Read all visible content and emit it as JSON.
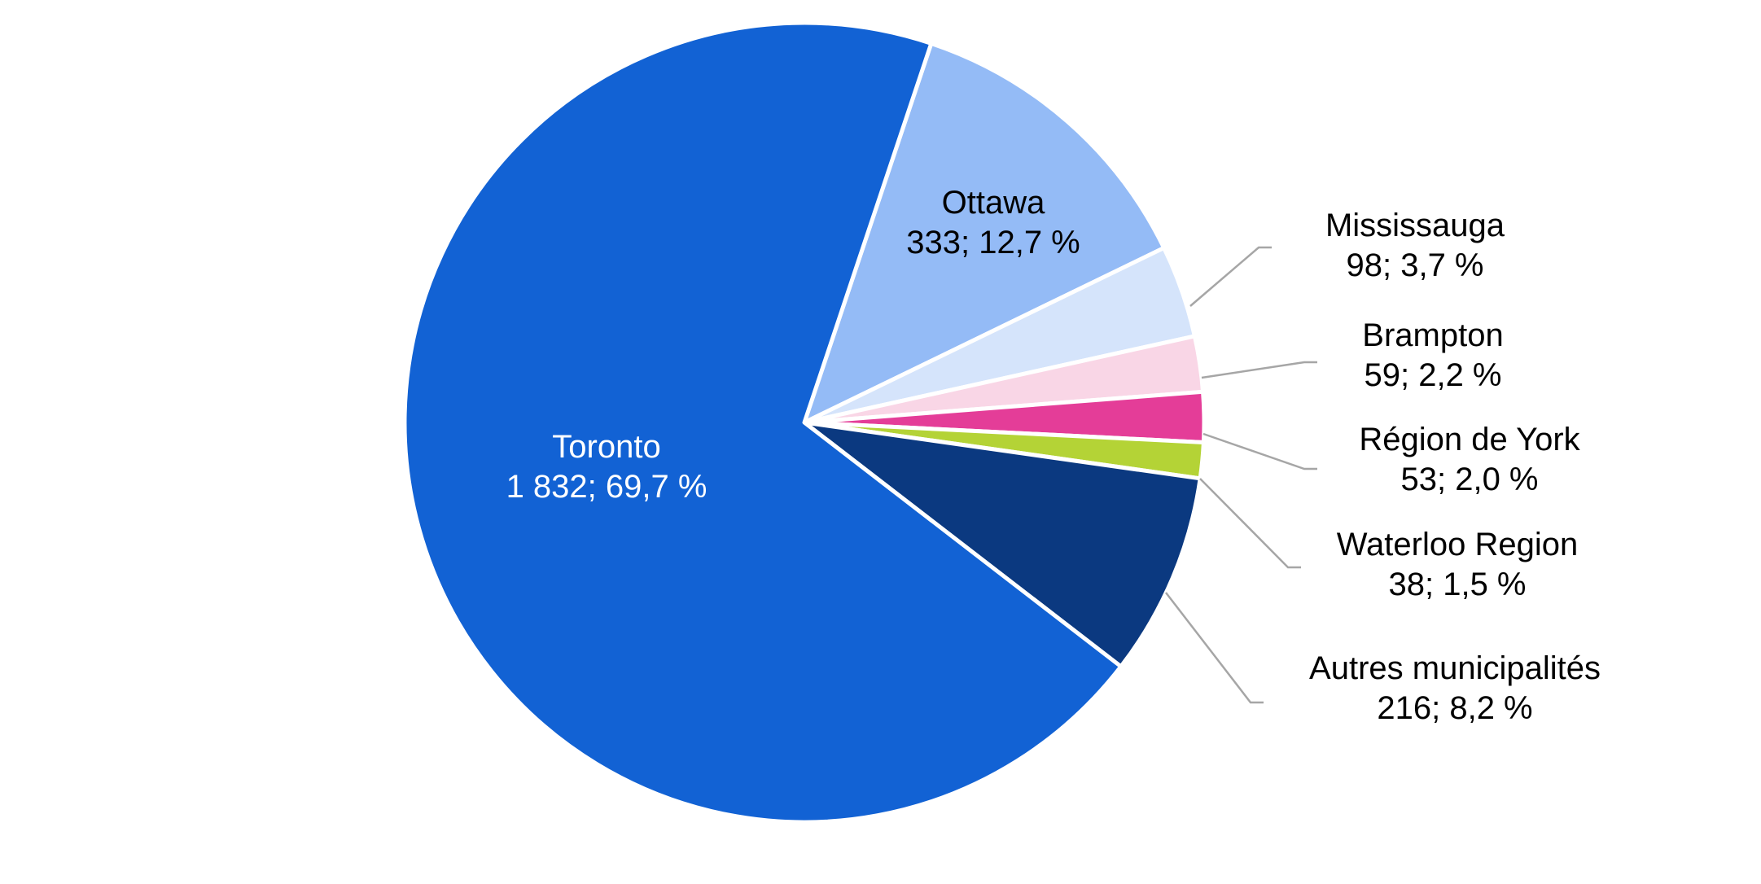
{
  "chart_data": {
    "type": "pie",
    "title": "",
    "start_angle_deg": 18.5,
    "direction": "clockwise",
    "slices": [
      {
        "label": "Ottawa",
        "value": 333,
        "percent_label": "333; 12,7 %",
        "color": "#94BBF6",
        "label_color": "#000000"
      },
      {
        "label": "Mississauga",
        "value": 98,
        "percent_label": "98; 3,7 %",
        "color": "#D5E4FB",
        "label_color": "#000000"
      },
      {
        "label": "Brampton",
        "value": 59,
        "percent_label": "59; 2,2 %",
        "color": "#F9D6E6",
        "label_color": "#000000"
      },
      {
        "label": "Région de York",
        "value": 53,
        "percent_label": "53; 2,0 %",
        "color": "#E43D98",
        "label_color": "#000000"
      },
      {
        "label": "Waterloo Region",
        "value": 38,
        "percent_label": "38; 1,5 %",
        "color": "#B4D336",
        "label_color": "#000000"
      },
      {
        "label": "Autres municipalités",
        "value": 216,
        "percent_label": "216; 8,2 %",
        "color": "#0B3980",
        "label_color": "#000000"
      },
      {
        "label": "Toronto",
        "value": 1832,
        "percent_label": "1 832; 69,7 %",
        "color": "#1262D4",
        "label_color": "#ffffff"
      }
    ],
    "leader_line_color": "#A6A6A6"
  }
}
